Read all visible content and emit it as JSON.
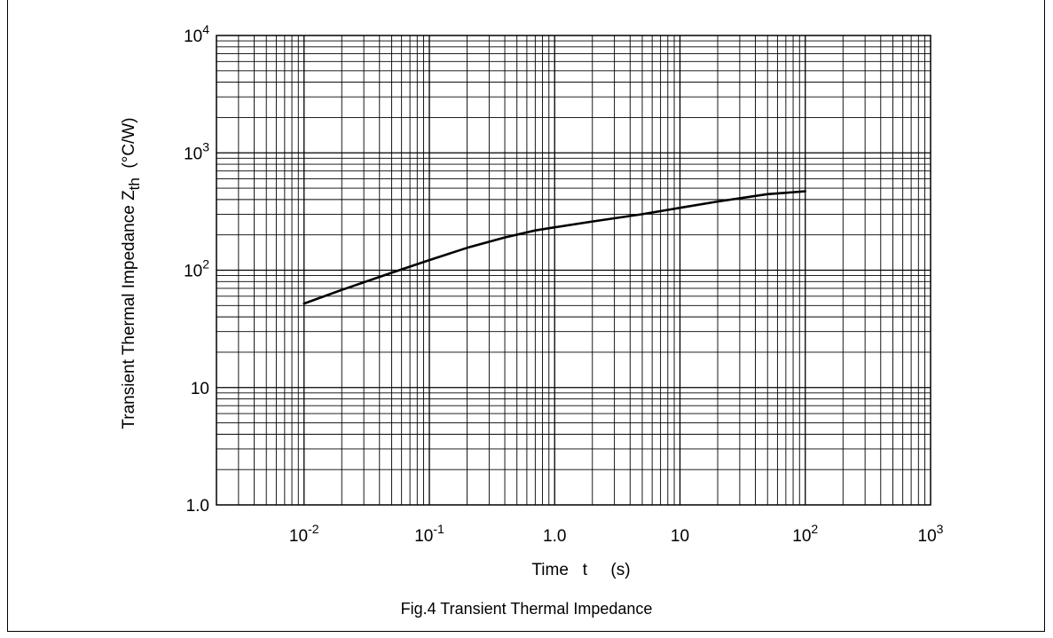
{
  "chart_data": {
    "type": "line",
    "scale": {
      "x": "log",
      "y": "log"
    },
    "xlim": [
      0.002,
      1000
    ],
    "ylim": [
      1,
      10000
    ],
    "grid": true,
    "x_tick_labels": [
      {
        "value": 0.01,
        "base": "10",
        "exp": "-2"
      },
      {
        "value": 0.1,
        "base": "10",
        "exp": "-1"
      },
      {
        "value": 1,
        "base": "1.0",
        "exp": ""
      },
      {
        "value": 10,
        "base": "10",
        "exp": ""
      },
      {
        "value": 100,
        "base": "10",
        "exp": "2"
      },
      {
        "value": 1000,
        "base": "10",
        "exp": "3"
      }
    ],
    "y_tick_labels": [
      {
        "value": 1,
        "base": "1.0",
        "exp": ""
      },
      {
        "value": 10,
        "base": "10",
        "exp": ""
      },
      {
        "value": 100,
        "base": "10",
        "exp": "2"
      },
      {
        "value": 1000,
        "base": "10",
        "exp": "3"
      },
      {
        "value": 10000,
        "base": "10",
        "exp": "4"
      }
    ],
    "xlabel": "Time   t     (s)",
    "ylabel": {
      "main": "Transient Thermal Impedance Z",
      "sub": "th",
      "unit": "  (°C/W)"
    },
    "series": [
      {
        "color": "#000000",
        "x": [
          0.01,
          0.02,
          0.05,
          0.1,
          0.2,
          0.4,
          0.7,
          1,
          2,
          5,
          10,
          20,
          50,
          100
        ],
        "y": [
          52,
          68,
          95,
          122,
          155,
          190,
          218,
          232,
          260,
          300,
          340,
          385,
          445,
          470
        ]
      }
    ]
  },
  "caption": "Fig.4   Transient Thermal Impedance"
}
